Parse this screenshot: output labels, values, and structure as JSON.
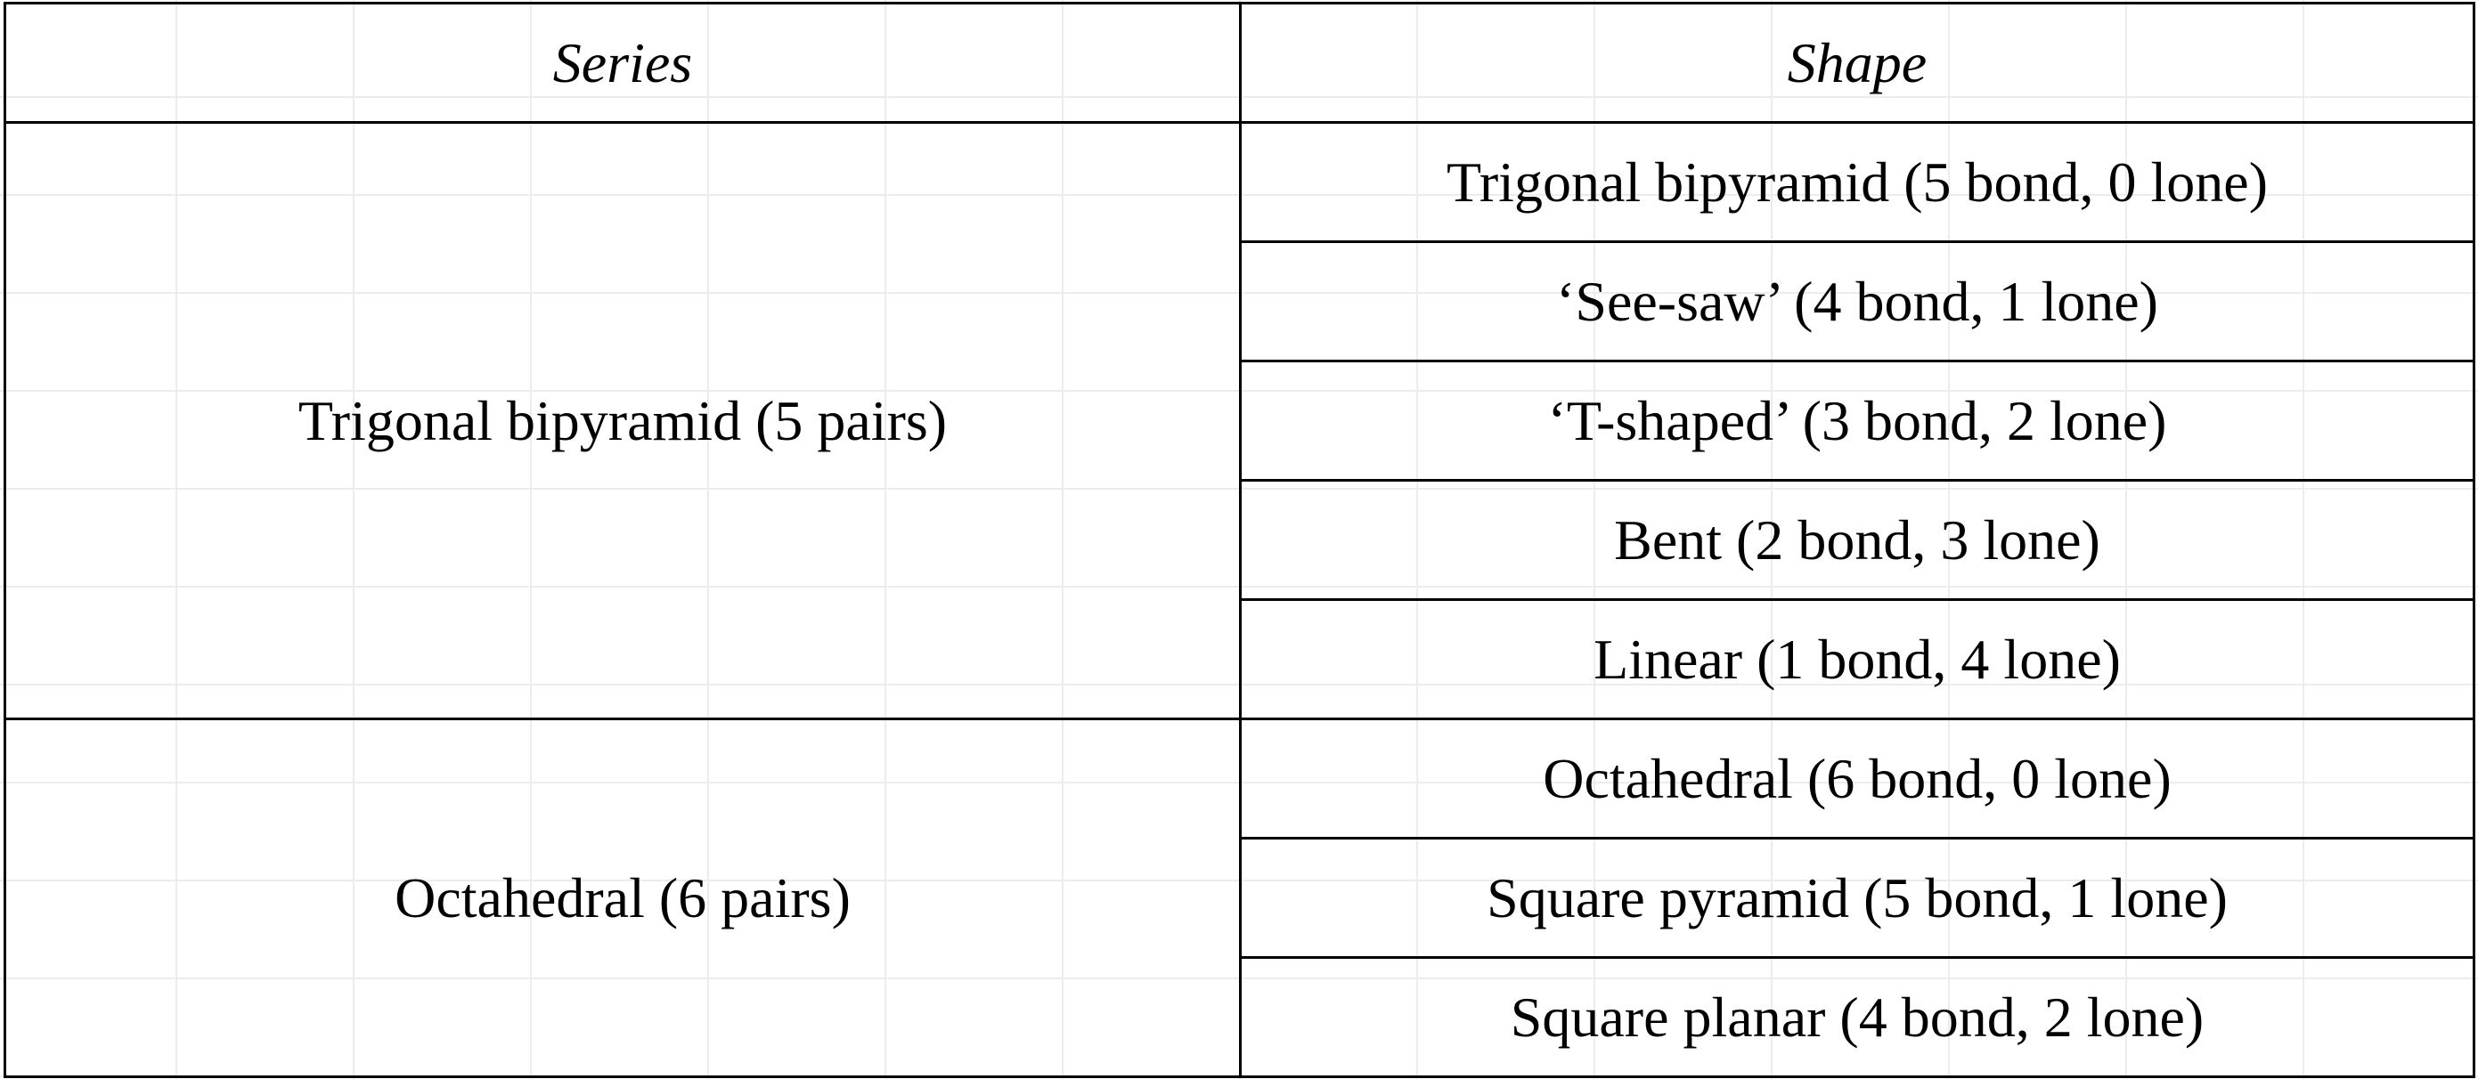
{
  "table": {
    "headers": {
      "series": "Series",
      "shape": "Shape"
    },
    "groups": [
      {
        "series": "Trigonal bipyramid (5 pairs)",
        "shapes": [
          "Trigonal bipyramid (5 bond, 0 lone)",
          "‘See-saw’ (4 bond, 1 lone)",
          "‘T-shaped’ (3 bond, 2 lone)",
          "Bent (2 bond, 3 lone)",
          "Linear (1 bond, 4 lone)"
        ]
      },
      {
        "series": "Octahedral (6 pairs)",
        "shapes": [
          "Octahedral (6 bond, 0 lone)",
          "Square pyramid (5 bond, 1 lone)",
          "Square planar (4 bond, 2 lone)"
        ]
      }
    ]
  }
}
